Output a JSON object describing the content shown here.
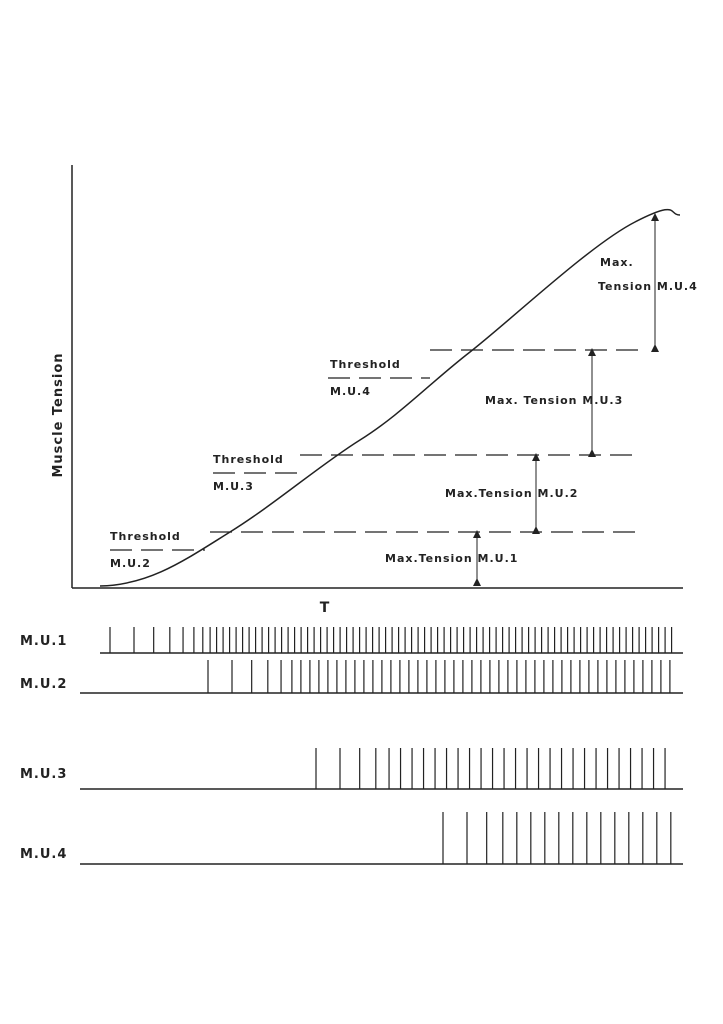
{
  "y_axis_label": "Muscle Tension",
  "x_axis_label": "T",
  "thresholds": [
    {
      "line1": "Threshold",
      "line2": "M.U.2"
    },
    {
      "line1": "Threshold",
      "line2": "M.U.3"
    },
    {
      "line1": "Threshold",
      "line2": "M.U.4"
    }
  ],
  "max_tensions": [
    "Max.Tension M.U.1",
    "Max.Tension M.U.2",
    "Max. Tension M.U.3",
    {
      "line1": "Max.",
      "line2": "Tension M.U.4"
    }
  ],
  "trains": [
    "M.U.1",
    "M.U.2",
    "M.U.3",
    "M.U.4"
  ]
}
